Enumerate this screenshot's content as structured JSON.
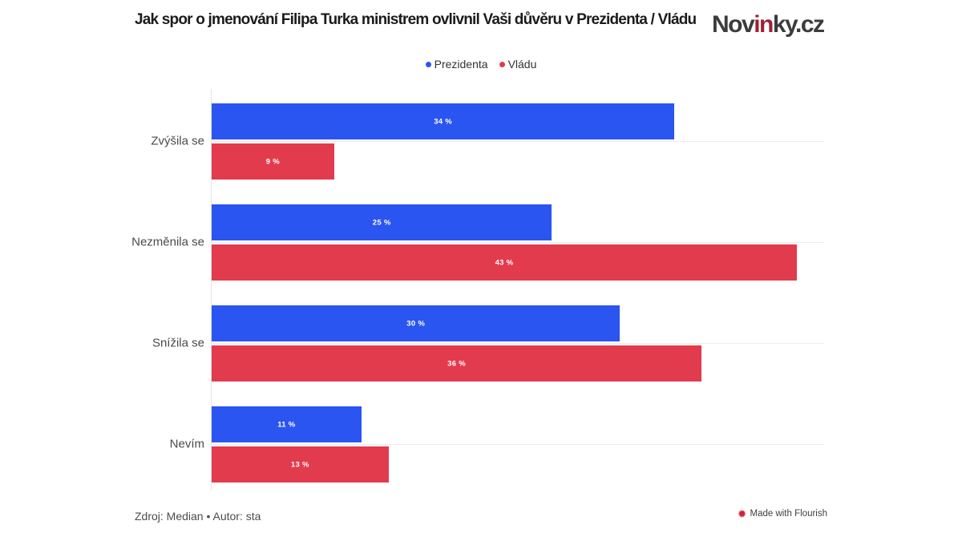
{
  "header": {
    "title": "Jak spor o jmenování Filipa Turka ministrem ovlivnil Vaši důvěru v Prezidenta / Vládu"
  },
  "logo": {
    "part1": "Nov",
    "part2": "in",
    "part3": "ky.cz",
    "dark_color": "#3c3c3c",
    "red_color": "#9d2235"
  },
  "chart_data": {
    "type": "bar",
    "orientation": "horizontal",
    "title": "Jak spor o jmenování Filipa Turka ministrem ovlivnil Vaši důvěru v Prezidenta / Vládu",
    "categories": [
      "Zvýšila se",
      "Nezměnila se",
      "Snížila se",
      "Nevím"
    ],
    "series": [
      {
        "name": "Prezidenta",
        "color": "#2b55f0",
        "values": [
          34,
          25,
          30,
          11
        ]
      },
      {
        "name": "Vládu",
        "color": "#e23b4d",
        "values": [
          9,
          43,
          36,
          13
        ]
      }
    ],
    "value_suffix": " %",
    "xlim": [
      0,
      45
    ],
    "grid": "horizontal category separator lines, light gray",
    "legend_position": "top-center",
    "value_labels": "centered inside bars, white bold"
  },
  "footer": {
    "credit": "Zdroj: Median • Autor: sta",
    "flourish_label": "Made with Flourish"
  },
  "colors": {
    "background": "#ffffff",
    "title_text": "#1b1b1b",
    "category_label": "#4a4a4a",
    "gridline": "#ececec",
    "axis_line": "#e3e3e3",
    "flourish_icon": "#cf2437"
  }
}
